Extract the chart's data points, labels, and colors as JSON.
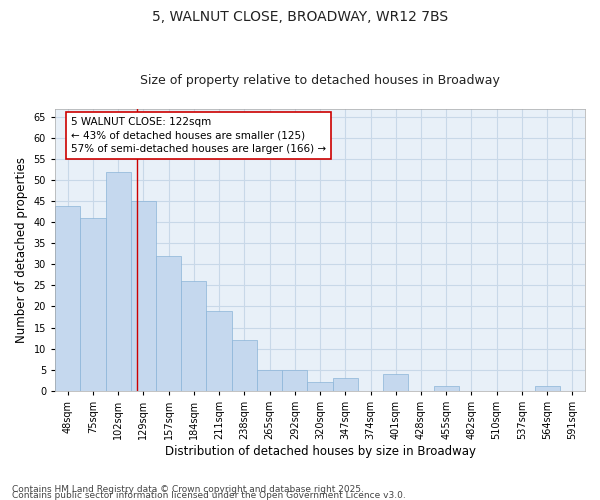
{
  "title1": "5, WALNUT CLOSE, BROADWAY, WR12 7BS",
  "title2": "Size of property relative to detached houses in Broadway",
  "xlabel": "Distribution of detached houses by size in Broadway",
  "ylabel": "Number of detached properties",
  "categories": [
    "48sqm",
    "75sqm",
    "102sqm",
    "129sqm",
    "157sqm",
    "184sqm",
    "211sqm",
    "238sqm",
    "265sqm",
    "292sqm",
    "320sqm",
    "347sqm",
    "374sqm",
    "401sqm",
    "428sqm",
    "455sqm",
    "482sqm",
    "510sqm",
    "537sqm",
    "564sqm",
    "591sqm"
  ],
  "values": [
    44,
    41,
    52,
    45,
    32,
    26,
    19,
    12,
    5,
    5,
    2,
    3,
    0,
    4,
    0,
    1,
    0,
    0,
    0,
    1,
    0
  ],
  "bar_color": "#c5d8ee",
  "bar_edgecolor": "#8ab4d8",
  "grid_color": "#c8d8e8",
  "bg_color": "#ffffff",
  "plot_bg_color": "#e8f0f8",
  "redline_x": 2.75,
  "annotation_text_line1": "5 WALNUT CLOSE: 122sqm",
  "annotation_text_line2": "← 43% of detached houses are smaller (125)",
  "annotation_text_line3": "57% of semi-detached houses are larger (166) →",
  "annotation_box_color": "#ffffff",
  "annotation_border_color": "#cc0000",
  "ylim": [
    0,
    67
  ],
  "yticks": [
    0,
    5,
    10,
    15,
    20,
    25,
    30,
    35,
    40,
    45,
    50,
    55,
    60,
    65
  ],
  "footer1": "Contains HM Land Registry data © Crown copyright and database right 2025.",
  "footer2": "Contains public sector information licensed under the Open Government Licence v3.0.",
  "title_fontsize": 10,
  "subtitle_fontsize": 9,
  "axis_label_fontsize": 8.5,
  "tick_fontsize": 7,
  "annot_fontsize": 7.5,
  "footer_fontsize": 6.5
}
